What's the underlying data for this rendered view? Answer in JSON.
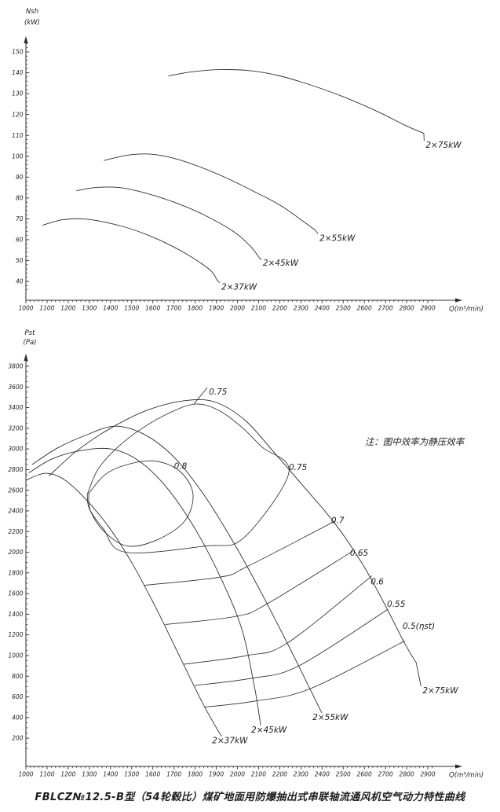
{
  "page": {
    "caption": "FBLCZ№12.5-B型（54轮毂比）煤矿地面用防爆抽出式串联轴流通风机空气动力特性曲线",
    "note": "注：图中效率为静压效率",
    "ink": "#2e2e2e",
    "background": "#ffffff"
  },
  "chart_data": [
    {
      "id": "shaft-power-chart",
      "type": "line",
      "title": "",
      "ylabel_lines": [
        "Nsh",
        "(kW)"
      ],
      "xlabel": "Q(m³/min)",
      "xlim": [
        1000,
        2900
      ],
      "ylim": [
        40,
        150
      ],
      "grid": false,
      "xticks": [
        1000,
        1100,
        1200,
        1300,
        1400,
        1500,
        1600,
        1700,
        1800,
        1900,
        2000,
        2100,
        2200,
        2300,
        2400,
        2500,
        2600,
        2700,
        2800,
        2900
      ],
      "yticks": [
        40,
        50,
        60,
        70,
        80,
        90,
        100,
        110,
        120,
        130,
        140,
        150
      ],
      "minor": {
        "x_step": 20,
        "x_range": [
          1000,
          2920
        ],
        "y_step": 2,
        "y_range": [
          36,
          154
        ]
      },
      "series": [
        {
          "name": "2×37kW",
          "points": [
            [
              1080,
              67
            ],
            [
              1170,
              69.5
            ],
            [
              1270,
              70
            ],
            [
              1370,
              68.5
            ],
            [
              1470,
              66
            ],
            [
              1570,
              62.5
            ],
            [
              1670,
              58
            ],
            [
              1770,
              52.5
            ],
            [
              1870,
              45.5
            ],
            [
              1905,
              40.5
            ]
          ]
        },
        {
          "name": "2×45kW",
          "points": [
            [
              1240,
              83.5
            ],
            [
              1330,
              85
            ],
            [
              1440,
              85
            ],
            [
              1560,
              82.5
            ],
            [
              1700,
              78
            ],
            [
              1840,
              72
            ],
            [
              1980,
              64
            ],
            [
              2060,
              57
            ],
            [
              2109,
              50.6
            ]
          ]
        },
        {
          "name": "2×55kW",
          "points": [
            [
              1370,
              98
            ],
            [
              1480,
              100.5
            ],
            [
              1590,
              101
            ],
            [
              1700,
              99
            ],
            [
              1820,
              95
            ],
            [
              1950,
              89.5
            ],
            [
              2080,
              83
            ],
            [
              2210,
              76
            ],
            [
              2369,
              64.5
            ]
          ]
        },
        {
          "name": "2×75kW",
          "points": [
            [
              1675,
              138.5
            ],
            [
              1790,
              140.5
            ],
            [
              1920,
              141.5
            ],
            [
              2060,
              141
            ],
            [
              2200,
              138.5
            ],
            [
              2350,
              134
            ],
            [
              2500,
              128.5
            ],
            [
              2650,
              122
            ],
            [
              2800,
              114.5
            ],
            [
              2881,
              111
            ]
          ]
        }
      ],
      "annotations": [
        {
          "text": "2×37kW",
          "x": 1924,
          "y": 36,
          "leader": [
            1905,
            40.5
          ]
        },
        {
          "text": "2×45kW",
          "x": 2120,
          "y": 47.5,
          "leader": [
            2109,
            50.6
          ]
        },
        {
          "text": "2×55kW",
          "x": 2388,
          "y": 59.5,
          "leader": [
            2369,
            64.5
          ]
        },
        {
          "text": "2×75kW",
          "x": 2890,
          "y": 104,
          "leader": [
            2881,
            111
          ]
        }
      ]
    },
    {
      "id": "static-pressure-chart",
      "type": "line",
      "title": "",
      "ylabel_lines": [
        "Pst",
        "(Pa)"
      ],
      "xlabel": "Q(m³/min)",
      "xlim": [
        1000,
        2900
      ],
      "ylim": [
        200,
        3800
      ],
      "grid": false,
      "xticks": [
        1000,
        1100,
        1200,
        1300,
        1400,
        1500,
        1600,
        1700,
        1800,
        1900,
        2000,
        2100,
        2200,
        2300,
        2400,
        2500,
        2600,
        2700,
        2800,
        2900
      ],
      "yticks": [
        200,
        400,
        600,
        800,
        1000,
        1200,
        1400,
        1600,
        1800,
        2000,
        2200,
        2400,
        2600,
        2800,
        3000,
        3200,
        3400,
        3600,
        3800
      ],
      "minor": {
        "x_step": 20,
        "x_range": [
          1000,
          2920
        ],
        "y_step": 50,
        "y_range": [
          100,
          3850
        ]
      },
      "series": [
        {
          "name": "2×37kW",
          "points": [
            [
              1005,
              2700
            ],
            [
              1060,
              2750
            ],
            [
              1110,
              2762
            ],
            [
              1180,
              2705
            ],
            [
              1280,
              2520
            ],
            [
              1390,
              2250
            ],
            [
              1500,
              1900
            ],
            [
              1610,
              1480
            ],
            [
              1720,
              1020
            ],
            [
              1830,
              560
            ],
            [
              1900,
              300
            ]
          ]
        },
        {
          "name": "2×45kW",
          "points": [
            [
              1015,
              2770
            ],
            [
              1120,
              2900
            ],
            [
              1250,
              2980
            ],
            [
              1400,
              3000
            ],
            [
              1530,
              2890
            ],
            [
              1660,
              2640
            ],
            [
              1790,
              2260
            ],
            [
              1910,
              1800
            ],
            [
              2020,
              1260
            ],
            [
              2080,
              700
            ],
            [
              2105,
              390
            ]
          ]
        },
        {
          "name": "2×55kW",
          "points": [
            [
              1030,
              2850
            ],
            [
              1150,
              3010
            ],
            [
              1280,
              3130
            ],
            [
              1420,
              3220
            ],
            [
              1560,
              3140
            ],
            [
              1700,
              2920
            ],
            [
              1840,
              2560
            ],
            [
              1980,
              2100
            ],
            [
              2120,
              1580
            ],
            [
              2260,
              1020
            ],
            [
              2390,
              480
            ]
          ]
        },
        {
          "name": "2×75kW",
          "points": [
            [
              1110,
              2740
            ],
            [
              1240,
              2980
            ],
            [
              1400,
              3200
            ],
            [
              1580,
              3380
            ],
            [
              1760,
              3470
            ],
            [
              1900,
              3450
            ],
            [
              2040,
              3270
            ],
            [
              2180,
              2950
            ],
            [
              2320,
              2620
            ],
            [
              2460,
              2280
            ],
            [
              2590,
              1890
            ],
            [
              2700,
              1480
            ],
            [
              2790,
              1120
            ],
            [
              2845,
              930
            ]
          ]
        }
      ],
      "contours": [
        {
          "label": "0.8",
          "closed": true,
          "points": [
            [
              1297,
              2570
            ],
            [
              1380,
              2760
            ],
            [
              1500,
              2860
            ],
            [
              1620,
              2880
            ],
            [
              1730,
              2780
            ],
            [
              1790,
              2560
            ],
            [
              1750,
              2300
            ],
            [
              1620,
              2120
            ],
            [
              1480,
              2060
            ],
            [
              1370,
              2200
            ],
            [
              1305,
              2400
            ],
            [
              1297,
              2570
            ]
          ]
        },
        {
          "label": "0.75",
          "closed": true,
          "points": [
            [
              1290,
              2560
            ],
            [
              1340,
              2800
            ],
            [
              1430,
              3010
            ],
            [
              1550,
              3200
            ],
            [
              1690,
              3360
            ],
            [
              1805,
              3435
            ],
            [
              1910,
              3375
            ],
            [
              2015,
              3220
            ],
            [
              2115,
              3020
            ],
            [
              2243,
              2770
            ],
            [
              2030,
              2140
            ],
            [
              1850,
              2060
            ],
            [
              1470,
              2000
            ],
            [
              1365,
              2230
            ],
            [
              1300,
              2420
            ],
            [
              1290,
              2560
            ]
          ]
        },
        {
          "label": "0.7",
          "closed": false,
          "points": [
            [
              1560,
              1680
            ],
            [
              1920,
              1760
            ],
            [
              2045,
              1860
            ],
            [
              2460,
              2300
            ]
          ]
        },
        {
          "label": "0.65",
          "closed": false,
          "points": [
            [
              1660,
              1300
            ],
            [
              1995,
              1380
            ],
            [
              2140,
              1500
            ],
            [
              2545,
              2010
            ]
          ]
        },
        {
          "label": "0.6",
          "closed": false,
          "points": [
            [
              1745,
              915
            ],
            [
              2045,
              1000
            ],
            [
              2235,
              1120
            ],
            [
              2635,
              1770
            ]
          ]
        },
        {
          "label": "0.55",
          "closed": false,
          "points": [
            [
              1800,
              710
            ],
            [
              2068,
              780
            ],
            [
              2290,
              900
            ],
            [
              2710,
              1445
            ]
          ]
        },
        {
          "label": "0.5",
          "closed": false,
          "points": [
            [
              1845,
              500
            ],
            [
              2088,
              560
            ],
            [
              2345,
              680
            ],
            [
              2790,
              1140
            ]
          ]
        }
      ],
      "annotations": [
        {
          "text": "0.75",
          "x": 1865,
          "y": 3525,
          "leader": [
            1795,
            3437
          ]
        },
        {
          "text": "0.8",
          "x": 1700,
          "y": 2805
        },
        {
          "text": "0.75",
          "x": 2243,
          "y": 2795
        },
        {
          "text": "0.7",
          "x": 2443,
          "y": 2280
        },
        {
          "text": "0.65",
          "x": 2532,
          "y": 1965
        },
        {
          "text": "0.6",
          "x": 2630,
          "y": 1690
        },
        {
          "text": "0.55",
          "x": 2707,
          "y": 1470
        },
        {
          "text": "0.5(ηst)",
          "x": 2781,
          "y": 1258
        },
        {
          "text": "2×37kW",
          "x": 1880,
          "y": 150,
          "leader": [
            1900,
            300
          ]
        },
        {
          "text": "2×45kW",
          "x": 2065,
          "y": 255,
          "leader": [
            2105,
            390
          ]
        },
        {
          "text": "2×55kW",
          "x": 2355,
          "y": 375,
          "leader": [
            2390,
            480
          ]
        },
        {
          "text": "2×75kW",
          "x": 2875,
          "y": 635,
          "leader": [
            2845,
            930
          ]
        },
        {
          "text": "注：图中效率为静压效率",
          "x": 2837,
          "y": 3040,
          "anchor": "middle",
          "size": 11.5
        }
      ]
    }
  ]
}
